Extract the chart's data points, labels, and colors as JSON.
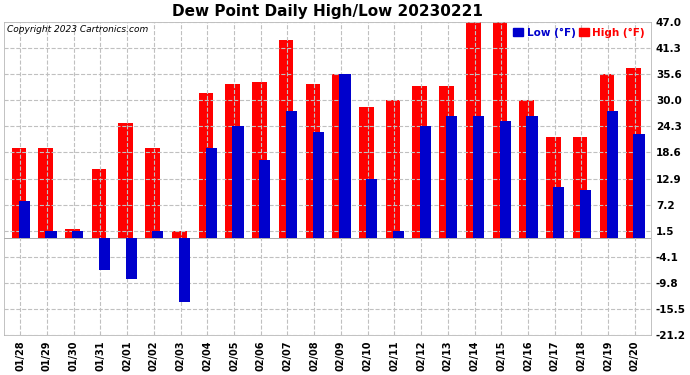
{
  "title": "Dew Point Daily High/Low 20230221",
  "copyright": "Copyright 2023 Cartronics.com",
  "dates": [
    "01/28",
    "01/29",
    "01/30",
    "01/31",
    "02/01",
    "02/02",
    "02/03",
    "02/04",
    "02/05",
    "02/06",
    "02/07",
    "02/08",
    "02/09",
    "02/10",
    "02/11",
    "02/12",
    "02/13",
    "02/14",
    "02/15",
    "02/16",
    "02/17",
    "02/18",
    "02/19",
    "02/20"
  ],
  "high": [
    19.5,
    19.5,
    2.0,
    15.0,
    25.0,
    19.5,
    1.5,
    31.5,
    33.5,
    34.0,
    43.0,
    33.5,
    35.6,
    28.5,
    30.0,
    33.0,
    33.0,
    47.0,
    47.0,
    30.0,
    22.0,
    22.0,
    35.6,
    37.0
  ],
  "low": [
    8.0,
    1.5,
    1.5,
    -7.0,
    -9.0,
    1.5,
    -14.0,
    19.5,
    24.3,
    17.0,
    27.5,
    23.0,
    35.6,
    12.9,
    1.5,
    24.3,
    26.5,
    26.5,
    25.5,
    26.5,
    11.0,
    10.5,
    27.5,
    22.5
  ],
  "high_color": "#ff0000",
  "low_color": "#0000cc",
  "yticks": [
    47.0,
    41.3,
    35.6,
    30.0,
    24.3,
    18.6,
    12.9,
    7.2,
    1.5,
    -4.1,
    -9.8,
    -15.5,
    -21.2
  ],
  "ymin": -21.2,
  "ymax": 47.0,
  "background_color": "#ffffff",
  "grid_color": "#c0c0c0",
  "title_fontsize": 11,
  "legend_low_label": "Low (°F)",
  "legend_high_label": "High (°F)"
}
